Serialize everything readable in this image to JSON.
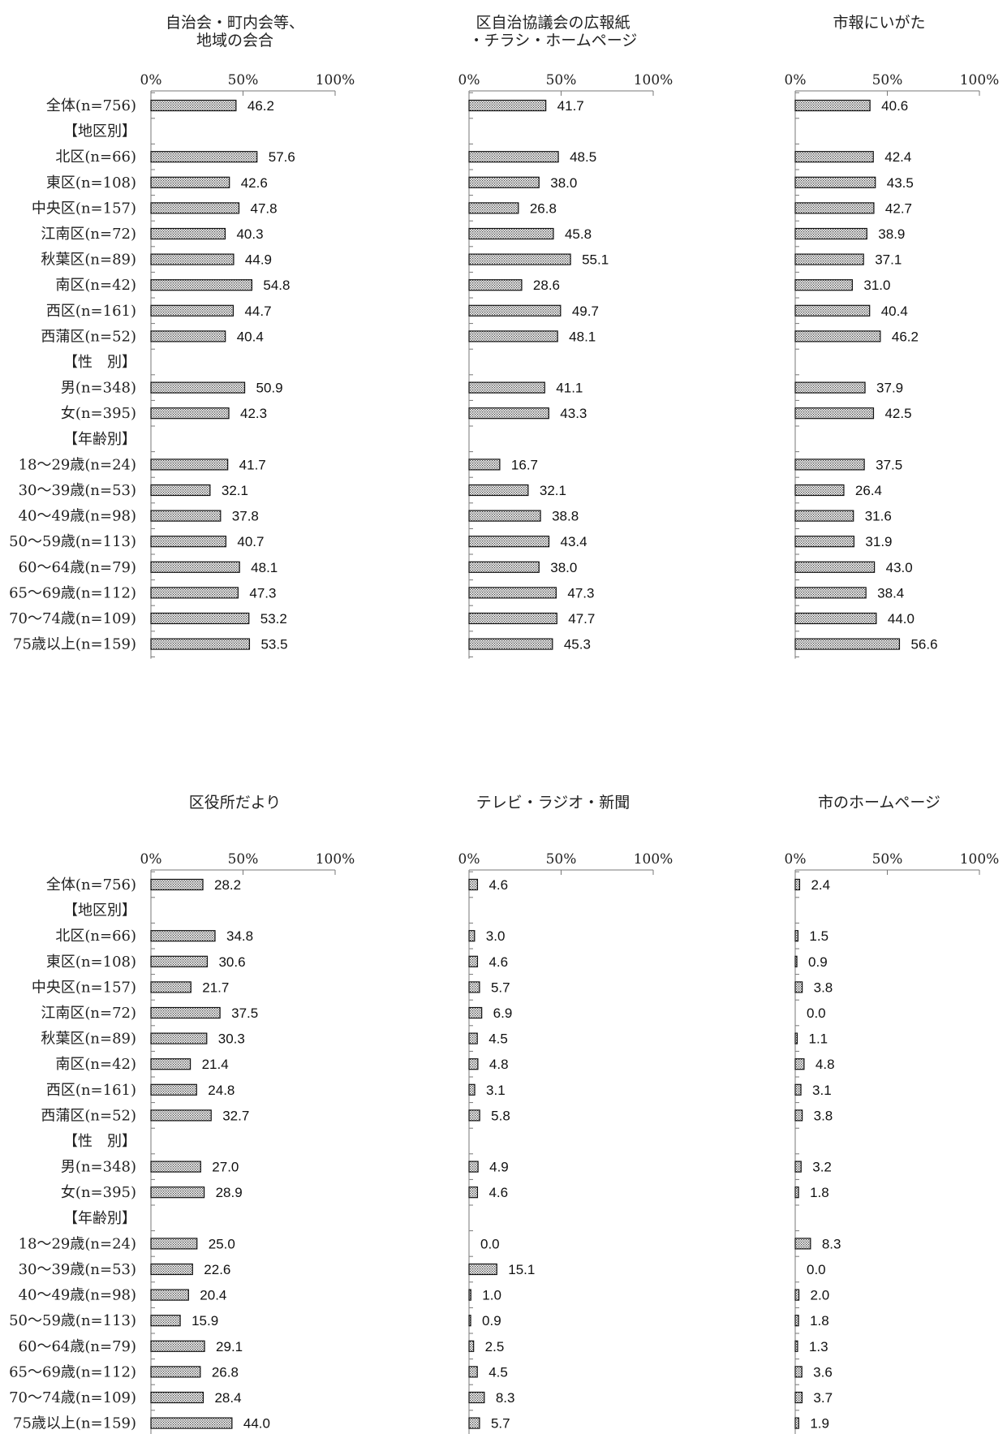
{
  "chart_data": [
    {
      "type": "bar",
      "title": [
        "自治会・町内会等、",
        "地域の会合"
      ],
      "xlim": [
        0,
        100
      ],
      "xticks": [
        "0%",
        "50%",
        "100%"
      ],
      "categories": [
        "全体(n=756)",
        "【地区別】",
        "北区(n=66)",
        "東区(n=108)",
        "中央区(n=157)",
        "江南区(n=72)",
        "秋葉区(n=89)",
        "南区(n=42)",
        "西区(n=161)",
        "西蒲区(n=52)",
        "【性　別】",
        "男(n=348)",
        "女(n=395)",
        "【年齢別】",
        "18～29歳(n=24)",
        "30～39歳(n=53)",
        "40～49歳(n=98)",
        "50～59歳(n=113)",
        "60～64歳(n=79)",
        "65～69歳(n=112)",
        "70～74歳(n=109)",
        "75歳以上(n=159)"
      ],
      "values": [
        "46.2",
        null,
        "57.6",
        "42.6",
        "47.8",
        "40.3",
        "44.9",
        "54.8",
        "44.7",
        "40.4",
        null,
        "50.9",
        "42.3",
        null,
        "41.7",
        "32.1",
        "37.8",
        "40.7",
        "48.1",
        "47.3",
        "53.2",
        "53.5"
      ]
    },
    {
      "type": "bar",
      "title": [
        "区自治協議会の広報紙",
        "・チラシ・ホームページ"
      ],
      "xlim": [
        0,
        100
      ],
      "xticks": [
        "0%",
        "50%",
        "100%"
      ],
      "values": [
        "41.7",
        null,
        "48.5",
        "38.0",
        "26.8",
        "45.8",
        "55.1",
        "28.6",
        "49.7",
        "48.1",
        null,
        "41.1",
        "43.3",
        null,
        "16.7",
        "32.1",
        "38.8",
        "43.4",
        "38.0",
        "47.3",
        "47.7",
        "45.3"
      ]
    },
    {
      "type": "bar",
      "title": [
        "市報にいがた"
      ],
      "xlim": [
        0,
        100
      ],
      "xticks": [
        "0%",
        "50%",
        "100%"
      ],
      "values": [
        "40.6",
        null,
        "42.4",
        "43.5",
        "42.7",
        "38.9",
        "37.1",
        "31.0",
        "40.4",
        "46.2",
        null,
        "37.9",
        "42.5",
        null,
        "37.5",
        "26.4",
        "31.6",
        "31.9",
        "43.0",
        "38.4",
        "44.0",
        "56.6"
      ]
    },
    {
      "type": "bar",
      "title": [
        "区役所だより"
      ],
      "xlim": [
        0,
        100
      ],
      "xticks": [
        "0%",
        "50%",
        "100%"
      ],
      "categories": [
        "全体(n=756)",
        "【地区別】",
        "北区(n=66)",
        "東区(n=108)",
        "中央区(n=157)",
        "江南区(n=72)",
        "秋葉区(n=89)",
        "南区(n=42)",
        "西区(n=161)",
        "西蒲区(n=52)",
        "【性　別】",
        "男(n=348)",
        "女(n=395)",
        "【年齢別】",
        "18～29歳(n=24)",
        "30～39歳(n=53)",
        "40～49歳(n=98)",
        "50～59歳(n=113)",
        "60～64歳(n=79)",
        "65～69歳(n=112)",
        "70～74歳(n=109)",
        "75歳以上(n=159)"
      ],
      "values": [
        "28.2",
        null,
        "34.8",
        "30.6",
        "21.7",
        "37.5",
        "30.3",
        "21.4",
        "24.8",
        "32.7",
        null,
        "27.0",
        "28.9",
        null,
        "25.0",
        "22.6",
        "20.4",
        "15.9",
        "29.1",
        "26.8",
        "28.4",
        "44.0"
      ]
    },
    {
      "type": "bar",
      "title": [
        "テレビ・ラジオ・新聞"
      ],
      "xlim": [
        0,
        100
      ],
      "xticks": [
        "0%",
        "50%",
        "100%"
      ],
      "values": [
        "4.6",
        null,
        "3.0",
        "4.6",
        "5.7",
        "6.9",
        "4.5",
        "4.8",
        "3.1",
        "5.8",
        null,
        "4.9",
        "4.6",
        null,
        "0.0",
        "15.1",
        "1.0",
        "0.9",
        "2.5",
        "4.5",
        "8.3",
        "5.7"
      ]
    },
    {
      "type": "bar",
      "title": [
        "市のホームページ"
      ],
      "xlim": [
        0,
        100
      ],
      "xticks": [
        "0%",
        "50%",
        "100%"
      ],
      "values": [
        "2.4",
        null,
        "1.5",
        "0.9",
        "3.8",
        "0.0",
        "1.1",
        "4.8",
        "3.1",
        "3.8",
        null,
        "3.2",
        "1.8",
        null,
        "8.3",
        "0.0",
        "2.0",
        "1.8",
        "1.3",
        "3.6",
        "3.7",
        "1.9"
      ]
    }
  ]
}
